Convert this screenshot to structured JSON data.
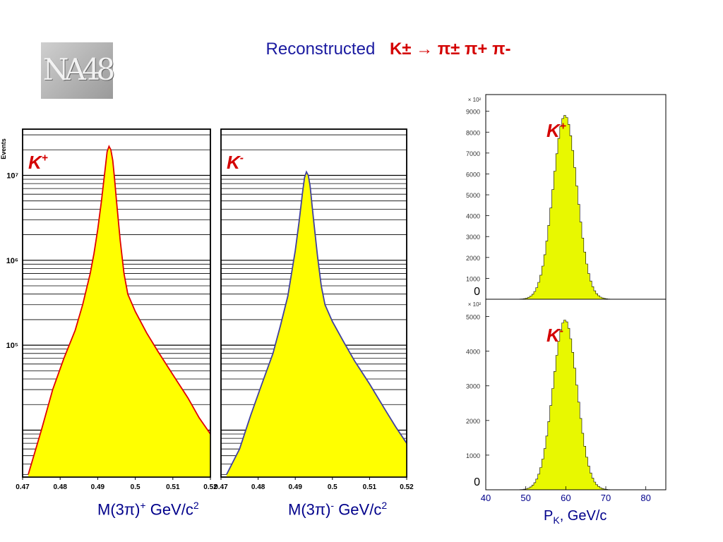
{
  "title": {
    "prefix": "Reconstructed",
    "reaction": "K± → π± π+ π-"
  },
  "logo": {
    "text": "NA48"
  },
  "captions": {
    "mass_kplus_base": "M(3π)",
    "mass_kplus_sup": "+",
    "mass_kplus_rest": " GeV/c",
    "mass_kplus_exp": "2",
    "mass_kminus_base": "M(3π)",
    "mass_kminus_sup": "-",
    "mass_kminus_rest": " GeV/c",
    "mass_kminus_exp": "2",
    "p_base": "P",
    "p_sub": "K",
    "p_rest": ", GeV/c"
  },
  "colors": {
    "fill": "#ffff00",
    "fill_p": "#e8f800",
    "red_line": "#e00000",
    "blue_line": "#4040a0",
    "label_red": "#d40000",
    "axis_text": "#00008b"
  },
  "chart_data": [
    {
      "type": "area",
      "label": "K+",
      "yaxis_label": "Events",
      "yscale": "log",
      "xlim": [
        0.47,
        0.52
      ],
      "ylim": [
        2800,
        35000000
      ],
      "xticks": [
        0.47,
        0.48,
        0.49,
        0.5,
        0.51,
        0.52
      ],
      "xtick_labels": [
        "0.47",
        "0.48",
        "0.49",
        "0.5",
        "0.51",
        "0.52"
      ],
      "yticks": [
        100000,
        1000000,
        10000000
      ],
      "ytick_labels": [
        "10⁵",
        "10⁶",
        "10⁷"
      ],
      "x": [
        0.4715,
        0.475,
        0.478,
        0.481,
        0.484,
        0.486,
        0.488,
        0.489,
        0.49,
        0.491,
        0.492,
        0.4925,
        0.493,
        0.4935,
        0.494,
        0.4945,
        0.495,
        0.496,
        0.497,
        0.498,
        0.5,
        0.503,
        0.506,
        0.51,
        0.514,
        0.517,
        0.52
      ],
      "y": [
        3000,
        10000,
        30000,
        70000,
        150000,
        300000,
        700000,
        1200000,
        2300000,
        5000000,
        12000000,
        19000000,
        22000000,
        20000000,
        15000000,
        9000000,
        5000000,
        1700000,
        700000,
        400000,
        250000,
        140000,
        85000,
        45000,
        24000,
        14000,
        9000
      ]
    },
    {
      "type": "area",
      "label": "K-",
      "yscale": "log",
      "xlim": [
        0.47,
        0.52
      ],
      "ylim": [
        2800,
        35000000
      ],
      "xticks": [
        0.47,
        0.48,
        0.49,
        0.5,
        0.51,
        0.52
      ],
      "xtick_labels": [
        "0.47",
        "0.48",
        "0.49",
        "0.5",
        "0.51",
        "0.52"
      ],
      "x": [
        0.4715,
        0.475,
        0.478,
        0.481,
        0.484,
        0.486,
        0.488,
        0.489,
        0.49,
        0.491,
        0.492,
        0.4925,
        0.493,
        0.4935,
        0.494,
        0.4945,
        0.495,
        0.496,
        0.497,
        0.498,
        0.5,
        0.503,
        0.506,
        0.51,
        0.514,
        0.517,
        0.52
      ],
      "y": [
        3000,
        6000,
        15000,
        35000,
        80000,
        170000,
        380000,
        700000,
        1300000,
        2800000,
        6500000,
        9500000,
        11000000,
        10000000,
        7500000,
        4500000,
        2800000,
        1100000,
        500000,
        300000,
        190000,
        110000,
        65000,
        35000,
        18000,
        11000,
        7000
      ]
    },
    {
      "type": "histogram",
      "label": "K+",
      "scale_label": "× 10²",
      "xlim": [
        40,
        85
      ],
      "ylim": [
        0,
        9800
      ],
      "yticks": [
        0,
        1000,
        2000,
        3000,
        4000,
        5000,
        6000,
        7000,
        8000,
        9000
      ],
      "ytick_labels": [
        "0",
        "1000",
        "2000",
        "3000",
        "4000",
        "5000",
        "6000",
        "7000",
        "8000",
        "9000"
      ],
      "peak": 8800,
      "mean": 59.8,
      "sigma": 3.0,
      "bin_width": 0.5
    },
    {
      "type": "histogram",
      "label": "K-",
      "scale_label": "× 10²",
      "xlim": [
        40,
        85
      ],
      "ylim": [
        0,
        5500
      ],
      "yticks": [
        0,
        1000,
        2000,
        3000,
        4000,
        5000
      ],
      "ytick_labels": [
        "0",
        "1000",
        "2000",
        "3000",
        "4000",
        "5000"
      ],
      "xticks": [
        40,
        50,
        60,
        70,
        80
      ],
      "xtick_labels": [
        "40",
        "50",
        "60",
        "70",
        "80"
      ],
      "peak": 4900,
      "mean": 59.8,
      "sigma": 3.0,
      "bin_width": 0.5
    }
  ]
}
